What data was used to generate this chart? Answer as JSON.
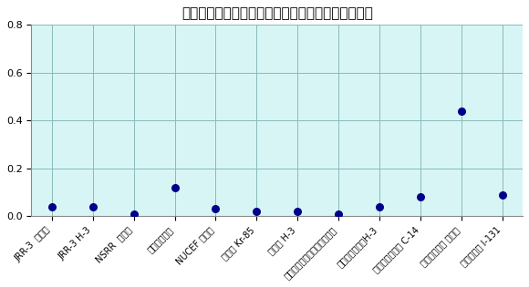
{
  "title": "排気中の主要放射性核種の管理目標値に対する割合",
  "categories": [
    "JRR-3  希ガス",
    "JRR-3 H-3",
    "NSRR  希ガス",
    "燃料試験施設",
    "NUCEF 希ガス",
    "再処理 Kr-85",
    "再処理 H-3",
    "原電東海発電所その他排気口",
    "積水メディカルH-3",
    "積水メディカル C-14",
    "照射後試験棟 希ガス",
    "化学分析棟 I-131"
  ],
  "values": [
    0.04,
    0.04,
    0.01,
    0.12,
    0.03,
    0.02,
    0.02,
    0.01,
    0.04,
    0.08,
    0.44,
    0.09
  ],
  "dot_color": "#00008B",
  "background_color": "#D8F5F5",
  "grid_color": "#88BBBB",
  "ylim": [
    0.0,
    0.8
  ],
  "yticks": [
    0.0,
    0.2,
    0.4,
    0.6,
    0.8
  ],
  "title_fontsize": 11,
  "tick_fontsize": 7
}
